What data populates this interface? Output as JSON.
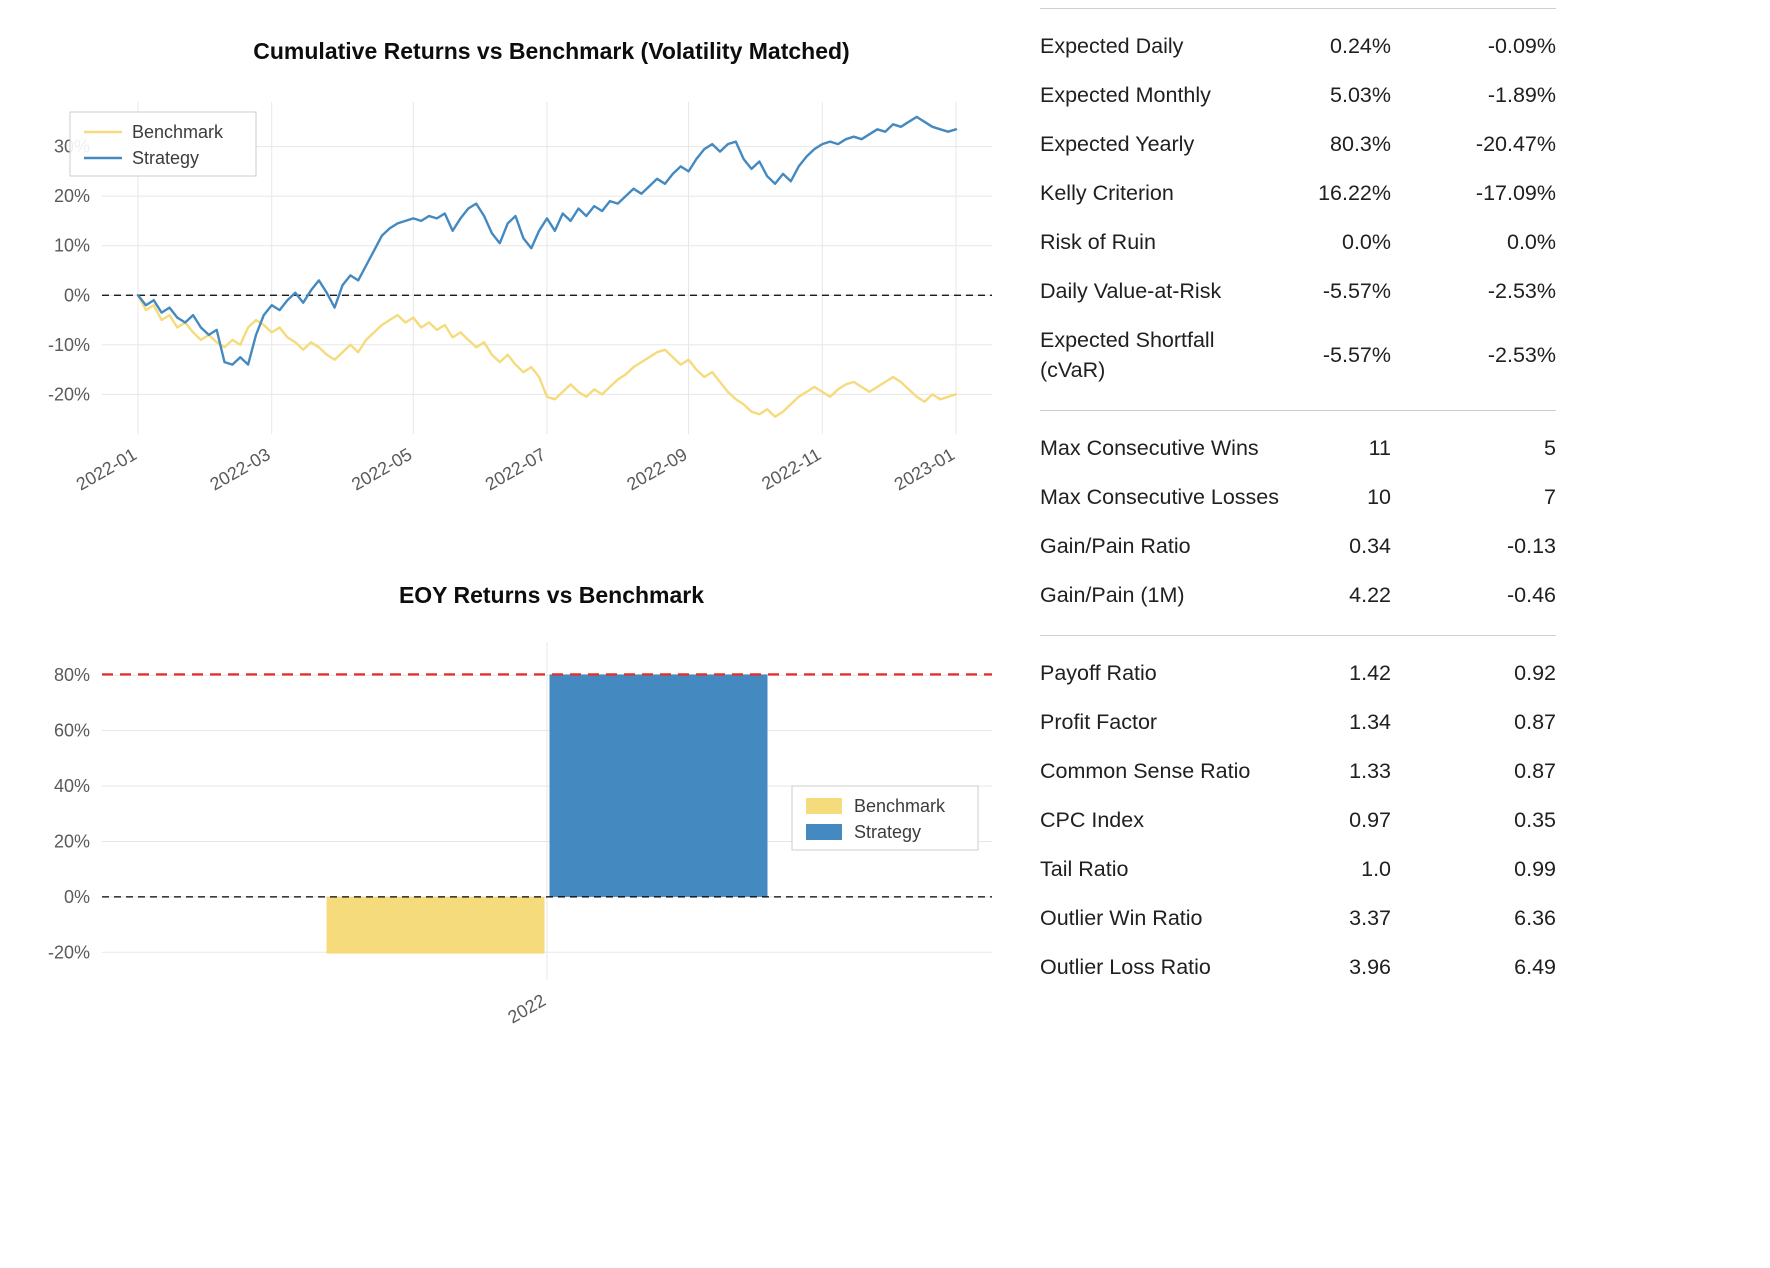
{
  "colors": {
    "benchmark": "#F6DB7D",
    "strategy": "#4489C0",
    "grid": "#E7E7E7",
    "tick_text": "#5A5A5A",
    "zero_line": "#000000",
    "target_line": "#E03231",
    "legend_border": "#CCCCCC",
    "legend_text": "#3C3C3C"
  },
  "chart_data": [
    {
      "type": "line",
      "title": "Cumulative Returns vs Benchmark (Volatility Matched)",
      "xlabel": "",
      "ylabel": "",
      "ylim": [
        -28,
        39
      ],
      "yticks": [
        30,
        20,
        10,
        0,
        -10,
        -20
      ],
      "ytick_suffix": "%",
      "grid": true,
      "zero_line": 0,
      "legend_position": "upper-left",
      "xticks": [
        {
          "index": 0,
          "label": "2022-01"
        },
        {
          "index": 17,
          "label": "2022-03"
        },
        {
          "index": 35,
          "label": "2022-05"
        },
        {
          "index": 52,
          "label": "2022-07"
        },
        {
          "index": 70,
          "label": "2022-09"
        },
        {
          "index": 87,
          "label": "2022-11"
        },
        {
          "index": 104,
          "label": "2023-01"
        }
      ],
      "series": [
        {
          "name": "Benchmark",
          "color": "#F6DB7D",
          "values": [
            0,
            -3,
            -2,
            -5,
            -4,
            -6.5,
            -5.5,
            -7.5,
            -9,
            -8,
            -9.5,
            -10.5,
            -9,
            -10,
            -6.5,
            -5,
            -6,
            -7.5,
            -6.5,
            -8.5,
            -9.5,
            -11,
            -9.5,
            -10.5,
            -12,
            -13,
            -11.5,
            -10,
            -11.5,
            -9,
            -7.5,
            -6,
            -5,
            -4,
            -5.5,
            -4.5,
            -6.5,
            -5.5,
            -7,
            -6,
            -8.5,
            -7.5,
            -9,
            -10.5,
            -9.5,
            -12,
            -13.5,
            -12,
            -14,
            -15.5,
            -14.5,
            -16.5,
            -20.5,
            -21,
            -19.5,
            -18,
            -19.5,
            -20.5,
            -19,
            -20,
            -18.5,
            -17,
            -16,
            -14.5,
            -13.5,
            -12.5,
            -11.5,
            -11,
            -12.5,
            -14,
            -13,
            -15,
            -16.5,
            -15.5,
            -17.5,
            -19.5,
            -21,
            -22,
            -23.5,
            -24,
            -23,
            -24.5,
            -23.5,
            -22,
            -20.5,
            -19.5,
            -18.5,
            -19.5,
            -20.5,
            -19,
            -18,
            -17.5,
            -18.5,
            -19.5,
            -18.5,
            -17.5,
            -16.5,
            -17.5,
            -19,
            -20.5,
            -21.5,
            -20,
            -21,
            -20.5,
            -20
          ]
        },
        {
          "name": "Strategy",
          "color": "#4489C0",
          "values": [
            0,
            -2,
            -1,
            -3.5,
            -2.5,
            -4.5,
            -5.5,
            -4,
            -6.5,
            -8,
            -7,
            -13.5,
            -14,
            -12.5,
            -14,
            -8,
            -4,
            -2,
            -3,
            -1,
            0.5,
            -1.5,
            1,
            3,
            0.5,
            -2.5,
            2,
            4,
            3,
            6,
            9,
            12,
            13.5,
            14.5,
            15,
            15.5,
            15,
            16,
            15.5,
            16.5,
            13,
            15.5,
            17.5,
            18.5,
            16,
            12.5,
            10.5,
            14.5,
            16,
            11.5,
            9.5,
            13,
            15.5,
            13,
            16.5,
            15,
            17.5,
            16,
            18,
            17,
            19,
            18.5,
            20,
            21.5,
            20.5,
            22,
            23.5,
            22.5,
            24.5,
            26,
            25,
            27.5,
            29.5,
            30.5,
            29,
            30.5,
            31,
            27.5,
            25.5,
            27,
            24,
            22.5,
            24.5,
            23,
            26,
            28,
            29.5,
            30.5,
            31,
            30.5,
            31.5,
            32,
            31.5,
            32.5,
            33.5,
            33,
            34.5,
            34,
            35,
            36,
            35,
            34,
            33.5,
            33,
            33.5
          ]
        }
      ]
    },
    {
      "type": "bar",
      "title": "EOY Returns  vs Benchmark",
      "xlabel": "",
      "ylabel": "",
      "categories": [
        "2022"
      ],
      "ylim": [
        -30,
        92
      ],
      "yticks": [
        80,
        60,
        40,
        20,
        0,
        -20
      ],
      "ytick_suffix": "%",
      "grid": true,
      "zero_line": 0,
      "target_line": {
        "value": 80.3,
        "color": "#E03231"
      },
      "legend_position": "center-right",
      "series": [
        {
          "name": "Benchmark",
          "color": "#F6DB7D",
          "values": [
            -20.47
          ]
        },
        {
          "name": "Strategy",
          "color": "#4489C0",
          "values": [
            80.3
          ]
        }
      ]
    }
  ],
  "metrics_table": {
    "groups": [
      {
        "rows": [
          {
            "label": "Expected Daily",
            "strategy": "0.24%",
            "benchmark": "-0.09%"
          },
          {
            "label": "Expected Monthly",
            "strategy": "5.03%",
            "benchmark": "-1.89%"
          },
          {
            "label": "Expected Yearly",
            "strategy": "80.3%",
            "benchmark": "-20.47%"
          },
          {
            "label": "Kelly Criterion",
            "strategy": "16.22%",
            "benchmark": "-17.09%"
          },
          {
            "label": "Risk of Ruin",
            "strategy": "0.0%",
            "benchmark": "0.0%"
          },
          {
            "label": "Daily Value-at-Risk",
            "strategy": "-5.57%",
            "benchmark": "-2.53%"
          },
          {
            "label": "Expected Shortfall (cVaR)",
            "strategy": "-5.57%",
            "benchmark": "-2.53%"
          }
        ]
      },
      {
        "rows": [
          {
            "label": "Max Consecutive Wins",
            "strategy": "11",
            "benchmark": "5"
          },
          {
            "label": "Max Consecutive Losses",
            "strategy": "10",
            "benchmark": "7"
          },
          {
            "label": "Gain/Pain Ratio",
            "strategy": "0.34",
            "benchmark": "-0.13"
          },
          {
            "label": "Gain/Pain (1M)",
            "strategy": "4.22",
            "benchmark": "-0.46"
          }
        ]
      },
      {
        "rows": [
          {
            "label": "Payoff Ratio",
            "strategy": "1.42",
            "benchmark": "0.92"
          },
          {
            "label": "Profit Factor",
            "strategy": "1.34",
            "benchmark": "0.87"
          },
          {
            "label": "Common Sense Ratio",
            "strategy": "1.33",
            "benchmark": "0.87"
          },
          {
            "label": "CPC Index",
            "strategy": "0.97",
            "benchmark": "0.35"
          },
          {
            "label": "Tail Ratio",
            "strategy": "1.0",
            "benchmark": "0.99"
          },
          {
            "label": "Outlier Win Ratio",
            "strategy": "3.37",
            "benchmark": "6.36"
          },
          {
            "label": "Outlier Loss Ratio",
            "strategy": "3.96",
            "benchmark": "6.49"
          }
        ]
      }
    ]
  }
}
